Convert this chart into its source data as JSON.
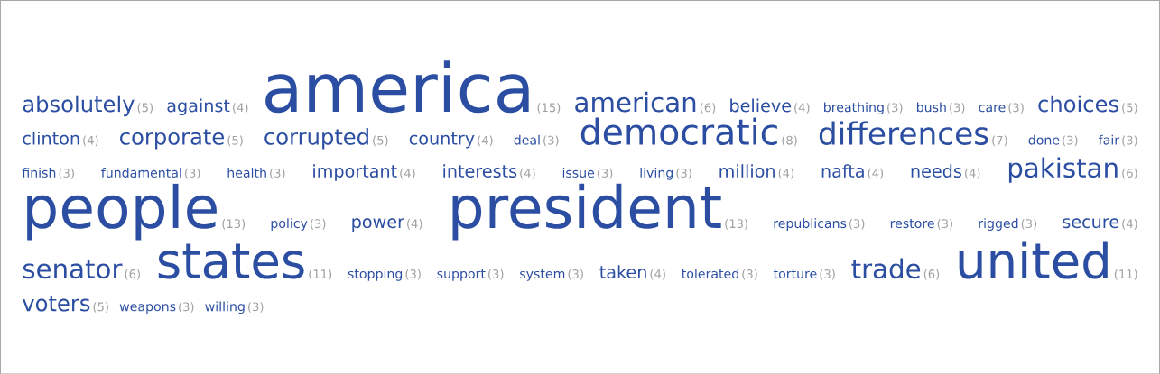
{
  "chart_data": {
    "type": "other",
    "categories": [
      "absolutely",
      "against",
      "america",
      "american",
      "believe",
      "breathing",
      "bush",
      "care",
      "choices",
      "clinton",
      "corporate",
      "corrupted",
      "country",
      "deal",
      "democratic",
      "differences",
      "done",
      "fair",
      "finish",
      "fundamental",
      "health",
      "important",
      "interests",
      "issue",
      "living",
      "million",
      "nafta",
      "needs",
      "pakistan",
      "people",
      "policy",
      "power",
      "president",
      "republicans",
      "restore",
      "rigged",
      "secure",
      "senator",
      "states",
      "stopping",
      "support",
      "system",
      "taken",
      "tolerated",
      "torture",
      "trade",
      "united",
      "voters",
      "weapons",
      "willing"
    ],
    "values": [
      5,
      4,
      15,
      6,
      4,
      3,
      3,
      3,
      5,
      4,
      5,
      5,
      4,
      3,
      8,
      7,
      3,
      3,
      3,
      3,
      3,
      4,
      4,
      3,
      3,
      4,
      4,
      4,
      6,
      13,
      3,
      4,
      13,
      3,
      3,
      3,
      4,
      6,
      11,
      3,
      3,
      3,
      4,
      3,
      3,
      6,
      11,
      5,
      3,
      3
    ],
    "value_labels": [
      "(5)",
      "(4)",
      "(15)",
      "(6)",
      "(4)",
      "(3)",
      "(3)",
      "(3)",
      "(5)",
      "(4)",
      "(5)",
      "(5)",
      "(4)",
      "(3)",
      "(8)",
      "(7)",
      "(3)",
      "(3)",
      "(3)",
      "(3)",
      "(3)",
      "(4)",
      "(4)",
      "(3)",
      "(3)",
      "(4)",
      "(4)",
      "(4)",
      "(6)",
      "(13)",
      "(3)",
      "(4)",
      "(13)",
      "(3)",
      "(3)",
      "(3)",
      "(4)",
      "(6)",
      "(11)",
      "(3)",
      "(3)",
      "(3)",
      "(4)",
      "(3)",
      "(3)",
      "(6)",
      "(11)",
      "(5)",
      "(3)",
      "(3)"
    ],
    "color": "#2b4ea2"
  }
}
